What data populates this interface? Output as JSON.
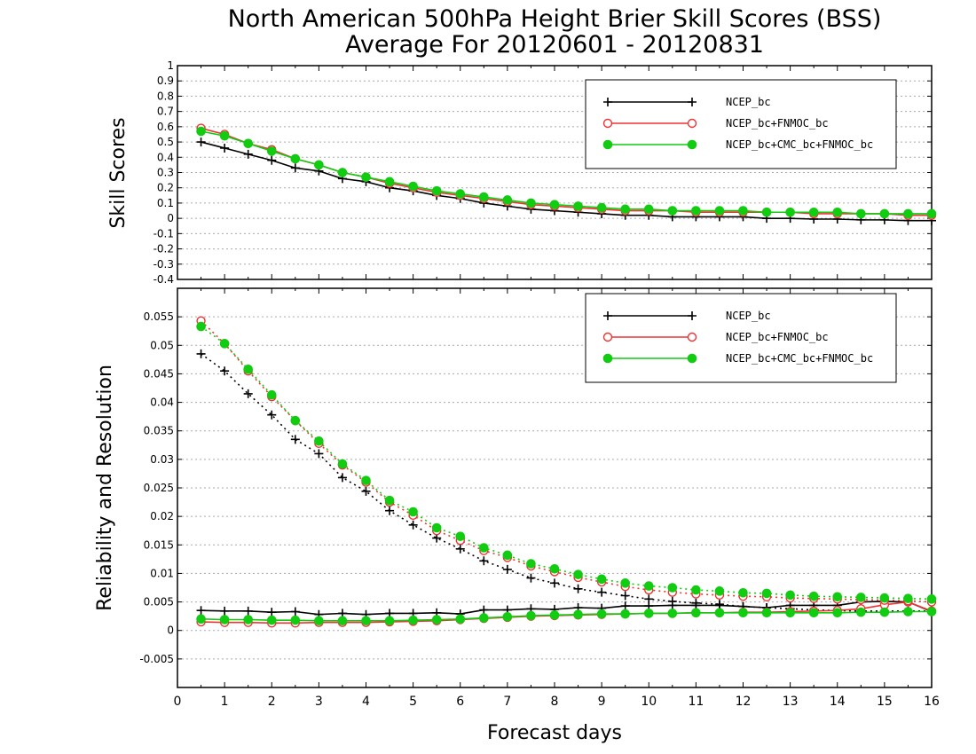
{
  "chart_title": {
    "line1": "North American 500hPa Height Brier Skill Scores (BSS)",
    "line2": "Average For 20120601 - 20120831"
  },
  "colors": {
    "NCEP_bc": "#000000",
    "NCEP_bc+FNMOC_bc": "#ee3333",
    "NCEP_bc+CMC_bc+FNMOC_bc": "#11cc11"
  },
  "chart_data": [
    {
      "type": "line",
      "ylabel": "Skill Scores",
      "xlabel": "",
      "xlim": [
        0,
        16
      ],
      "ylim": [
        -0.4,
        1
      ],
      "yticks": [
        "1",
        "0.9",
        "0.8",
        "0.7",
        "0.6",
        "0.5",
        "0.4",
        "0.3",
        "0.2",
        "0.1",
        "0",
        "-0.1",
        "-0.2",
        "-0.3",
        "-0.4"
      ],
      "ytick_values": [
        1,
        0.9,
        0.8,
        0.7,
        0.6,
        0.5,
        0.4,
        0.3,
        0.2,
        0.1,
        0,
        -0.1,
        -0.2,
        -0.3,
        -0.4
      ],
      "grid": true,
      "legend_position": "top-right",
      "x": [
        0.5,
        1,
        1.5,
        2,
        2.5,
        3,
        3.5,
        4,
        4.5,
        5,
        5.5,
        6,
        6.5,
        7,
        7.5,
        8,
        8.5,
        9,
        9.5,
        10,
        10.5,
        11,
        11.5,
        12,
        12.5,
        13,
        13.5,
        14,
        14.5,
        15,
        15.5,
        16
      ],
      "series": [
        {
          "name": "NCEP_bc",
          "marker": "plus",
          "values": [
            0.5,
            0.46,
            0.42,
            0.38,
            0.33,
            0.31,
            0.26,
            0.24,
            0.2,
            0.18,
            0.15,
            0.13,
            0.1,
            0.08,
            0.06,
            0.05,
            0.04,
            0.03,
            0.02,
            0.02,
            0.01,
            0.01,
            0.01,
            0.01,
            0.0,
            0.0,
            -0.005,
            -0.005,
            -0.01,
            -0.01,
            -0.015,
            -0.015
          ]
        },
        {
          "name": "NCEP_bc+FNMOC_bc",
          "marker": "circle-open",
          "values": [
            0.59,
            0.55,
            0.49,
            0.45,
            0.39,
            0.35,
            0.3,
            0.27,
            0.23,
            0.2,
            0.17,
            0.15,
            0.13,
            0.11,
            0.09,
            0.08,
            0.07,
            0.06,
            0.05,
            0.05,
            0.05,
            0.04,
            0.04,
            0.04,
            0.04,
            0.04,
            0.03,
            0.03,
            0.03,
            0.03,
            0.02,
            0.02
          ]
        },
        {
          "name": "NCEP_bc+CMC_bc+FNMOC_bc",
          "marker": "circle-filled",
          "values": [
            0.57,
            0.54,
            0.49,
            0.44,
            0.39,
            0.35,
            0.3,
            0.27,
            0.24,
            0.21,
            0.18,
            0.16,
            0.14,
            0.12,
            0.1,
            0.09,
            0.08,
            0.07,
            0.06,
            0.06,
            0.05,
            0.05,
            0.05,
            0.05,
            0.04,
            0.04,
            0.04,
            0.04,
            0.03,
            0.03,
            0.03,
            0.03
          ]
        }
      ]
    },
    {
      "type": "line",
      "ylabel": "Reliability and Resolution",
      "xlabel": "Forecast days",
      "xlim": [
        0,
        16
      ],
      "ylim": [
        -0.01,
        0.06
      ],
      "yticks": [
        "0.055",
        "0.05",
        "0.045",
        "0.04",
        "0.035",
        "0.03",
        "0.025",
        "0.02",
        "0.015",
        "0.01",
        "0.005",
        "0",
        "-0.005"
      ],
      "ytick_values": [
        0.055,
        0.05,
        0.045,
        0.04,
        0.035,
        0.03,
        0.025,
        0.02,
        0.015,
        0.01,
        0.005,
        0,
        -0.005
      ],
      "xticks": [
        "0",
        "1",
        "2",
        "3",
        "4",
        "5",
        "6",
        "7",
        "8",
        "9",
        "10",
        "11",
        "12",
        "13",
        "14",
        "15",
        "16"
      ],
      "grid": true,
      "legend_position": "top-right",
      "x": [
        0.5,
        1,
        1.5,
        2,
        2.5,
        3,
        3.5,
        4,
        4.5,
        5,
        5.5,
        6,
        6.5,
        7,
        7.5,
        8,
        8.5,
        9,
        9.5,
        10,
        10.5,
        11,
        11.5,
        12,
        12.5,
        13,
        13.5,
        14,
        14.5,
        15,
        15.5,
        16
      ],
      "series": [
        {
          "name": "NCEP_bc",
          "marker": "plus",
          "reliability": [
            0.0035,
            0.0034,
            0.0034,
            0.0032,
            0.0033,
            0.0028,
            0.003,
            0.0028,
            0.003,
            0.003,
            0.0031,
            0.0029,
            0.0036,
            0.0036,
            0.0038,
            0.0037,
            0.004,
            0.0039,
            0.0043,
            0.0043,
            0.0044,
            0.0044,
            0.0044,
            0.0042,
            0.004,
            0.0044,
            0.0044,
            0.0044,
            0.005,
            0.0051,
            0.005,
            0.0033
          ],
          "resolution": [
            0.0485,
            0.0455,
            0.0415,
            0.0378,
            0.0335,
            0.031,
            0.0268,
            0.0244,
            0.021,
            0.0185,
            0.0162,
            0.0143,
            0.0122,
            0.0107,
            0.0092,
            0.0083,
            0.0073,
            0.0067,
            0.0061,
            0.0055,
            0.0051,
            0.0048,
            0.0046,
            0.0042,
            0.004,
            0.0038,
            0.0036,
            0.0035,
            0.0034,
            0.0034,
            0.0034,
            0.0034
          ]
        },
        {
          "name": "NCEP_bc+FNMOC_bc",
          "marker": "circle-open",
          "reliability": [
            0.0015,
            0.0014,
            0.0014,
            0.0013,
            0.0013,
            0.0014,
            0.0014,
            0.0014,
            0.0015,
            0.0016,
            0.0017,
            0.0019,
            0.0021,
            0.0023,
            0.0025,
            0.0026,
            0.0027,
            0.0028,
            0.0029,
            0.003,
            0.003,
            0.0031,
            0.0031,
            0.0032,
            0.0032,
            0.0033,
            0.0034,
            0.0035,
            0.0038,
            0.0045,
            0.005,
            0.0034
          ],
          "resolution": [
            0.0543,
            0.0503,
            0.0455,
            0.041,
            0.0368,
            0.0328,
            0.029,
            0.026,
            0.0225,
            0.0202,
            0.0175,
            0.0158,
            0.014,
            0.0128,
            0.0113,
            0.0103,
            0.0093,
            0.0085,
            0.0077,
            0.0071,
            0.0067,
            0.0064,
            0.0062,
            0.006,
            0.0059,
            0.0057,
            0.0056,
            0.0055,
            0.0054,
            0.0053,
            0.0052,
            0.005
          ]
        },
        {
          "name": "NCEP_bc+CMC_bc+FNMOC_bc",
          "marker": "circle-filled",
          "reliability": [
            0.002,
            0.0019,
            0.0019,
            0.0018,
            0.0018,
            0.0017,
            0.0017,
            0.0017,
            0.0017,
            0.0018,
            0.0019,
            0.002,
            0.0022,
            0.0024,
            0.0026,
            0.0027,
            0.0028,
            0.0029,
            0.0029,
            0.003,
            0.003,
            0.0031,
            0.0031,
            0.0031,
            0.0031,
            0.0031,
            0.0031,
            0.0031,
            0.0032,
            0.0032,
            0.0033,
            0.0033
          ],
          "resolution": [
            0.0533,
            0.0503,
            0.0458,
            0.0413,
            0.0368,
            0.0332,
            0.0292,
            0.0263,
            0.0228,
            0.0208,
            0.018,
            0.0165,
            0.0145,
            0.0132,
            0.0117,
            0.0108,
            0.0098,
            0.009,
            0.0083,
            0.0078,
            0.0075,
            0.0071,
            0.0069,
            0.0066,
            0.0065,
            0.0062,
            0.006,
            0.0059,
            0.0058,
            0.0057,
            0.0056,
            0.0055
          ]
        }
      ]
    }
  ]
}
